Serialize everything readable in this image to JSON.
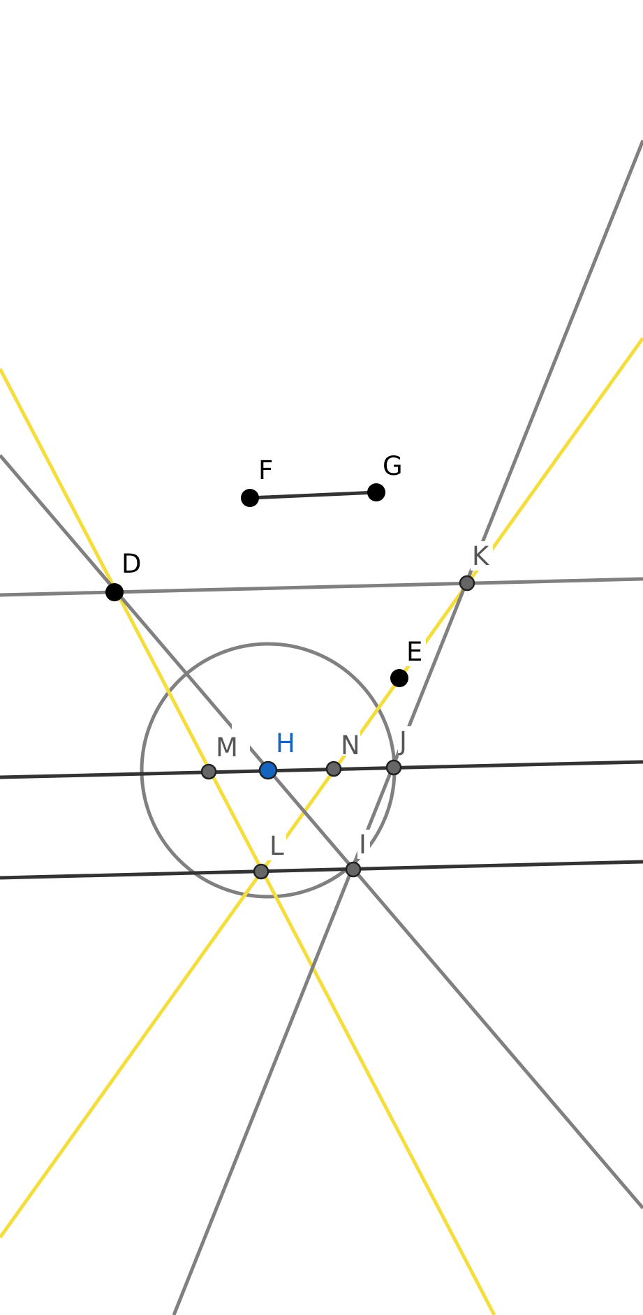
{
  "figure": {
    "type": "geometry-construction",
    "colors": {
      "background": "#ffffff",
      "yellow_line": "#f5dd3b",
      "gray_line": "#808080",
      "dark_line": "#333333",
      "circle": "#808080",
      "free_point": "#000000",
      "dependent_point": "#666666",
      "selected_point": "#1565c0",
      "label_free": "#000000",
      "label_dependent": "#555555",
      "label_selected": "#1565c0"
    },
    "points": {
      "D": {
        "label": "D",
        "kind": "free"
      },
      "E": {
        "label": "E",
        "kind": "free"
      },
      "F": {
        "label": "F",
        "kind": "free"
      },
      "G": {
        "label": "G",
        "kind": "free"
      },
      "H": {
        "label": "H",
        "kind": "selected"
      },
      "I": {
        "label": "I",
        "kind": "dependent"
      },
      "J": {
        "label": "J",
        "kind": "dependent"
      },
      "K": {
        "label": "K",
        "kind": "dependent"
      },
      "L": {
        "label": "L",
        "kind": "dependent"
      },
      "M": {
        "label": "M",
        "kind": "dependent"
      },
      "N": {
        "label": "N",
        "kind": "dependent"
      }
    }
  }
}
